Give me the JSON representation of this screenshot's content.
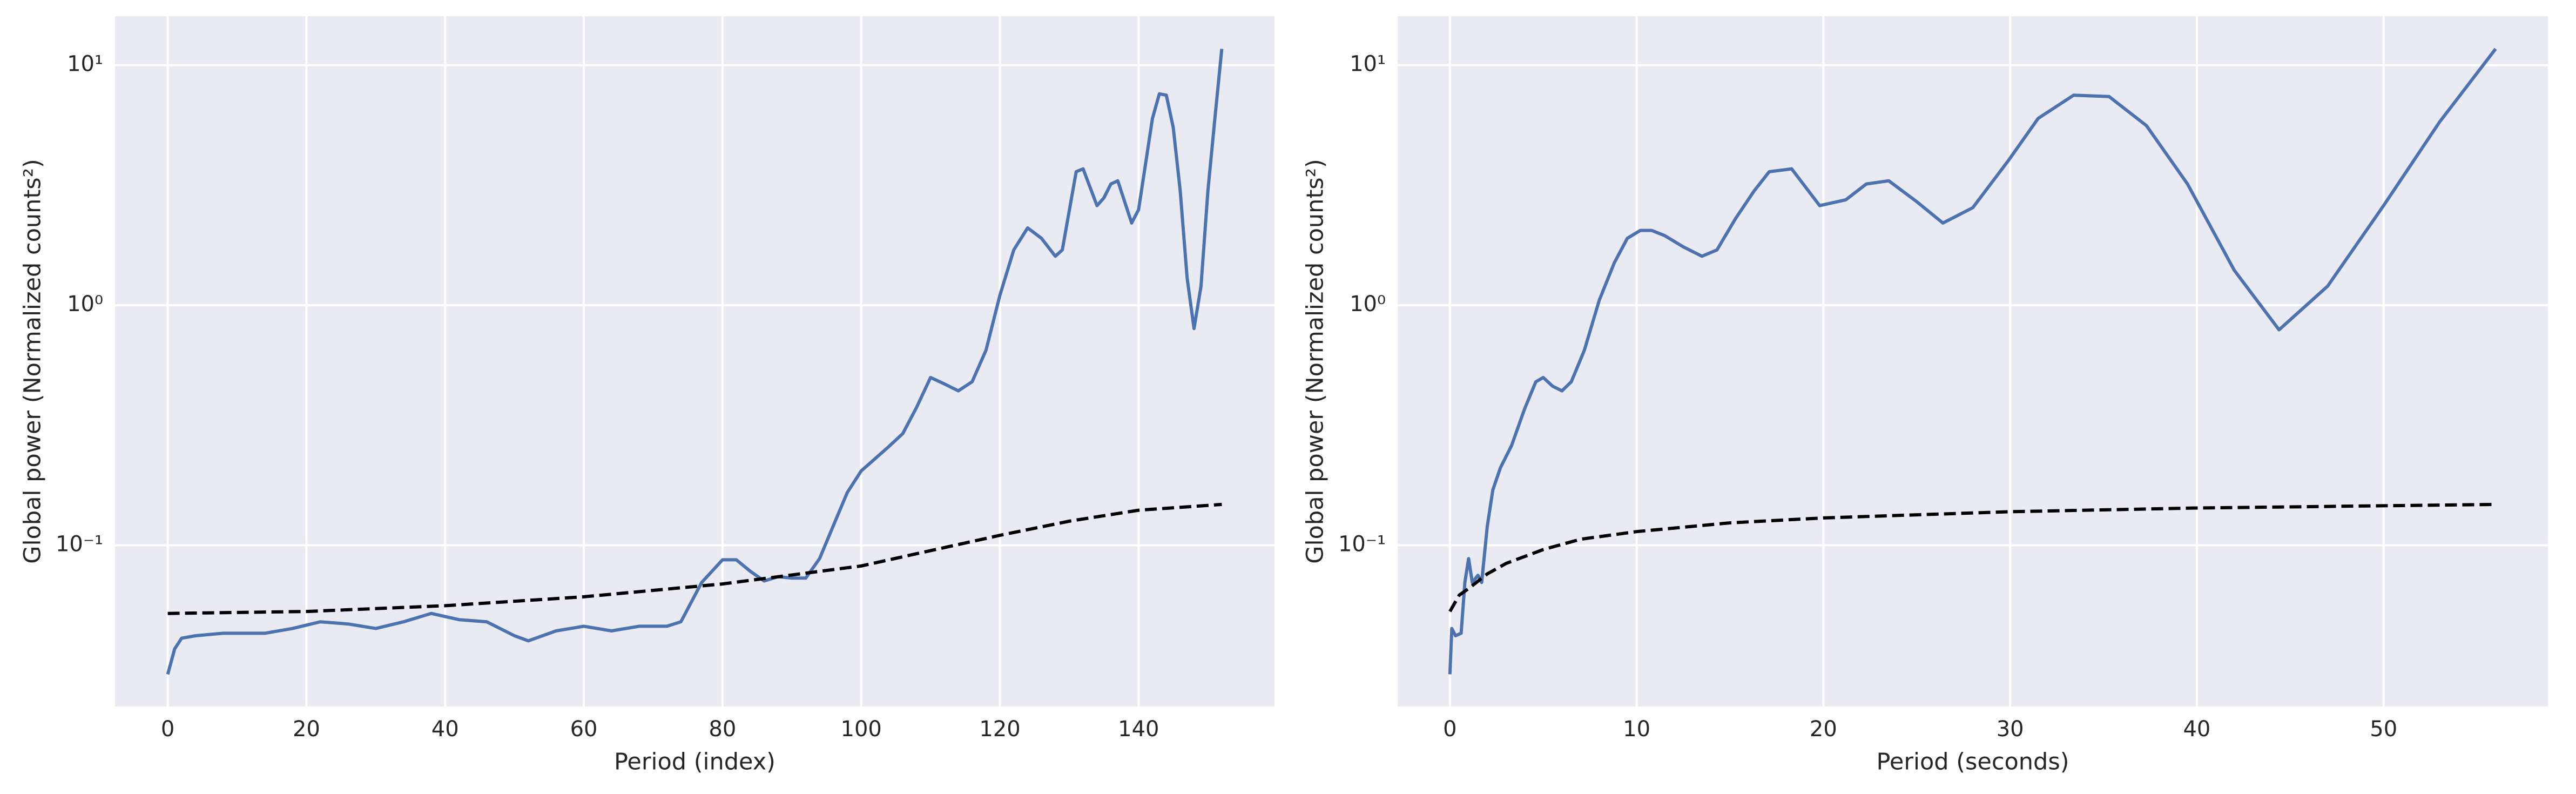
{
  "chart_data": [
    {
      "type": "line",
      "xlabel": "Period (index)",
      "ylabel": "Global power (Normalized counts²)",
      "yscale": "log",
      "grid": true,
      "background": "#eaeaf2",
      "xlim": [
        -7.6,
        159.6
      ],
      "ylim": [
        0.0213,
        16.0
      ],
      "xticks": [
        0,
        20,
        40,
        60,
        80,
        100,
        120,
        140
      ],
      "yticks": [
        {
          "value": 0.1,
          "label": "10⁻¹"
        },
        {
          "value": 1,
          "label": "10⁰"
        },
        {
          "value": 10,
          "label": "10¹"
        }
      ],
      "series": [
        {
          "color": "#4c72b0",
          "dashed": false,
          "x": [
            0,
            1,
            2,
            4,
            8,
            10,
            14,
            18,
            22,
            26,
            30,
            34,
            38,
            42,
            46,
            50,
            52,
            56,
            60,
            64,
            68,
            72,
            74,
            77,
            80,
            82,
            84,
            86,
            88,
            90,
            92,
            94,
            96,
            98,
            100,
            104,
            106,
            108,
            110,
            112,
            114,
            116,
            118,
            120,
            122,
            124,
            126,
            128,
            129,
            131,
            132,
            134,
            135,
            136,
            137,
            139,
            140,
            142,
            143,
            144,
            145,
            146,
            147,
            148,
            149,
            150,
            151,
            152
          ],
          "values": [
            0.029,
            0.037,
            0.041,
            0.042,
            0.043,
            0.043,
            0.043,
            0.045,
            0.048,
            0.047,
            0.045,
            0.048,
            0.052,
            0.049,
            0.048,
            0.042,
            0.04,
            0.044,
            0.046,
            0.044,
            0.046,
            0.046,
            0.048,
            0.07,
            0.087,
            0.087,
            0.078,
            0.071,
            0.074,
            0.073,
            0.073,
            0.088,
            0.121,
            0.166,
            0.204,
            0.258,
            0.292,
            0.376,
            0.5,
            0.47,
            0.44,
            0.48,
            0.65,
            1.1,
            1.7,
            2.1,
            1.9,
            1.6,
            1.7,
            3.6,
            3.7,
            2.6,
            2.8,
            3.2,
            3.3,
            2.2,
            2.5,
            6.0,
            7.6,
            7.5,
            5.5,
            3.0,
            1.3,
            0.8,
            1.2,
            3.0,
            6.0,
            11.7
          ]
        },
        {
          "color": "#000000",
          "dashed": true,
          "x": [
            0,
            20,
            40,
            60,
            80,
            100,
            120,
            130,
            140,
            152
          ],
          "values": [
            0.052,
            0.053,
            0.056,
            0.061,
            0.069,
            0.082,
            0.11,
            0.126,
            0.14,
            0.148
          ]
        }
      ]
    },
    {
      "type": "line",
      "xlabel": "Period (seconds)",
      "ylabel": "Global power (Normalized counts²)",
      "yscale": "log",
      "grid": true,
      "background": "#eaeaf2",
      "xlim": [
        -2.8,
        58.8
      ],
      "ylim": [
        0.0213,
        16.0
      ],
      "xticks": [
        0,
        10,
        20,
        30,
        40,
        50
      ],
      "yticks": [
        {
          "value": 0.1,
          "label": "10⁻¹"
        },
        {
          "value": 1,
          "label": "10⁰"
        },
        {
          "value": 10,
          "label": "10¹"
        }
      ],
      "series": [
        {
          "color": "#4c72b0",
          "dashed": false,
          "x": [
            0,
            0.1,
            0.3,
            0.6,
            0.8,
            1.0,
            1.2,
            1.5,
            1.7,
            2.0,
            2.3,
            2.7,
            3.3,
            4.0,
            4.6,
            5.0,
            5.5,
            6.0,
            6.5,
            7.2,
            8.0,
            8.8,
            9.5,
            10.2,
            10.8,
            11.5,
            12.5,
            13.5,
            14.3,
            15.3,
            16.3,
            17.1,
            18.3,
            19.8,
            21.2,
            22.3,
            23.5,
            25,
            26.4,
            28,
            29.9,
            31.5,
            33.4,
            35.3,
            37.3,
            39.5,
            42,
            44.4,
            47,
            50,
            53,
            56
          ],
          "values": [
            0.029,
            0.045,
            0.042,
            0.043,
            0.07,
            0.088,
            0.07,
            0.075,
            0.07,
            0.12,
            0.17,
            0.21,
            0.26,
            0.37,
            0.48,
            0.5,
            0.46,
            0.44,
            0.48,
            0.65,
            1.05,
            1.5,
            1.9,
            2.05,
            2.05,
            1.95,
            1.75,
            1.6,
            1.7,
            2.3,
            3.0,
            3.6,
            3.7,
            2.6,
            2.75,
            3.2,
            3.3,
            2.7,
            2.2,
            2.55,
            4.0,
            6.0,
            7.5,
            7.4,
            5.6,
            3.2,
            1.4,
            0.79,
            1.2,
            2.6,
            5.8,
            11.7
          ]
        },
        {
          "color": "#000000",
          "dashed": true,
          "x": [
            0,
            0.5,
            1,
            2,
            3,
            5,
            7,
            10,
            15,
            20,
            30,
            40,
            56
          ],
          "values": [
            0.053,
            0.062,
            0.066,
            0.076,
            0.084,
            0.096,
            0.106,
            0.114,
            0.124,
            0.13,
            0.138,
            0.143,
            0.148
          ]
        }
      ]
    }
  ]
}
